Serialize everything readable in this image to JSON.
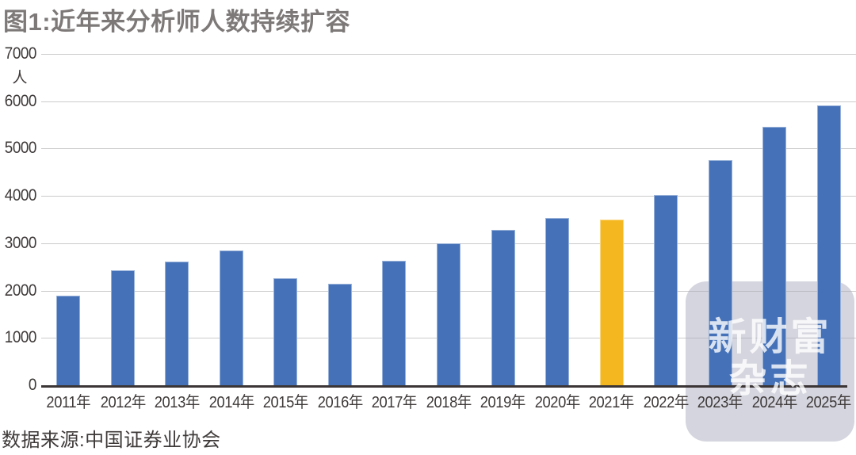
{
  "figure": {
    "title": "图1:近年来分析师人数持续扩容",
    "source": "数据来源:中国证券业协会",
    "watermark": {
      "line1": "新财富",
      "line2": "杂志"
    }
  },
  "chart_data": {
    "type": "bar",
    "title": "图1:近年来分析师人数持续扩容",
    "unit": "人",
    "categories": [
      "2011年",
      "2012年",
      "2013年",
      "2014年",
      "2015年",
      "2016年",
      "2017年",
      "2018年",
      "2019年",
      "2020年",
      "2021年",
      "2022年",
      "2023年",
      "2024年",
      "2025年"
    ],
    "values": [
      1920,
      2460,
      2640,
      2880,
      2290,
      2180,
      2660,
      3030,
      3320,
      3570,
      3530,
      4060,
      4790,
      5490,
      5950
    ],
    "highlight_index": 10,
    "highlight_category": "2021年",
    "ylabel": "人",
    "ylim": [
      0,
      7000
    ],
    "ytick_step": 1000,
    "yticks": [
      0,
      1000,
      2000,
      3000,
      4000,
      5000,
      6000,
      7000
    ],
    "grid": "horizontal",
    "legend": "none",
    "source": "数据来源:中国证券业协会",
    "colors": {
      "bar": "#4471b8",
      "highlight_bar": "#f5b71f",
      "title_text": "#7e7979",
      "axis_text": "#3f3a3a",
      "gridline": "#cccbcb",
      "axis_line": "#3b3536",
      "watermark_bg": "#a9abbd",
      "watermark_text": "#ffffff"
    }
  }
}
